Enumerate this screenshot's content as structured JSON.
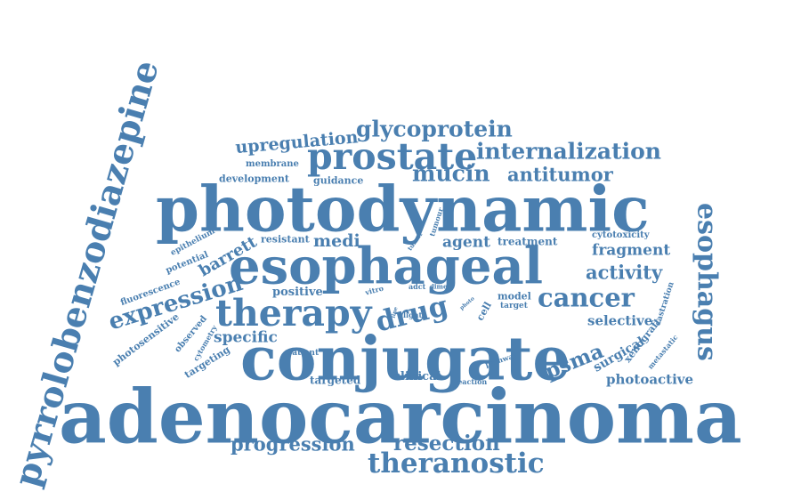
{
  "color": "#4a7fb0",
  "words": [
    {
      "text": "adenocarcinoma"
    },
    {
      "text": "photodynamic"
    },
    {
      "text": "conjugate"
    },
    {
      "text": "esophageal"
    },
    {
      "text": "pyrrolobenzodiazepine"
    },
    {
      "text": "therapy"
    },
    {
      "text": "prostate"
    },
    {
      "text": "esophagus"
    },
    {
      "text": "theranostic"
    },
    {
      "text": "glycoprotein"
    },
    {
      "text": "internalization"
    },
    {
      "text": "mucin"
    },
    {
      "text": "antitumor"
    },
    {
      "text": "drug"
    },
    {
      "text": "cancer"
    },
    {
      "text": "expression"
    },
    {
      "text": "psma"
    },
    {
      "text": "resection"
    },
    {
      "text": "progression"
    },
    {
      "text": "upregulation"
    },
    {
      "text": "activity"
    },
    {
      "text": "barrett"
    },
    {
      "text": "fragment"
    },
    {
      "text": "agent"
    },
    {
      "text": "medi"
    },
    {
      "text": "specific"
    },
    {
      "text": "photoactive"
    },
    {
      "text": "selective"
    },
    {
      "text": "surgical"
    },
    {
      "text": "positive"
    },
    {
      "text": "development"
    },
    {
      "text": "guidance"
    },
    {
      "text": "membrane"
    },
    {
      "text": "treatment"
    },
    {
      "text": "resistant"
    },
    {
      "text": "xenograft"
    },
    {
      "text": "clinical"
    },
    {
      "text": "targeted"
    },
    {
      "text": "fluorescence"
    },
    {
      "text": "photosensitive"
    },
    {
      "text": "targeting"
    },
    {
      "text": "observed"
    },
    {
      "text": "potential"
    },
    {
      "text": "epithelium"
    },
    {
      "text": "cytotoxicity"
    },
    {
      "text": "model"
    },
    {
      "text": "cell"
    },
    {
      "text": "castration"
    },
    {
      "text": "metastatic"
    },
    {
      "text": "cytometry"
    },
    {
      "text": "patient"
    },
    {
      "text": "tumour"
    },
    {
      "text": "tumor"
    },
    {
      "text": "vitro"
    },
    {
      "text": "adct"
    },
    {
      "text": "dimer"
    },
    {
      "text": "light"
    },
    {
      "text": "line"
    },
    {
      "text": "photo"
    },
    {
      "text": "target"
    },
    {
      "text": "pathway"
    },
    {
      "text": "reaction"
    }
  ]
}
